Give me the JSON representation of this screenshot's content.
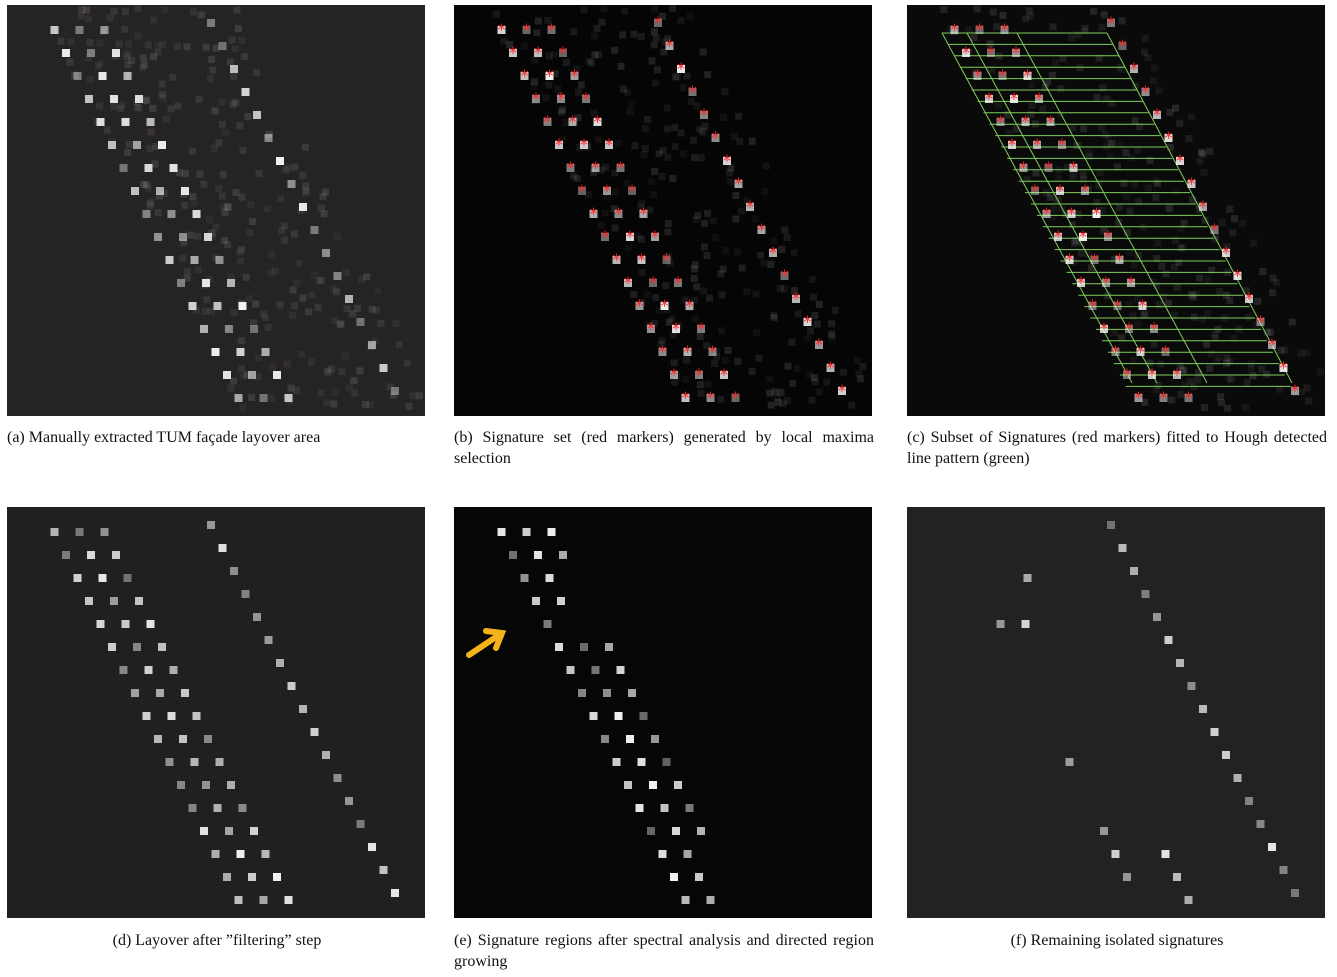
{
  "panels": [
    {
      "caption": "(a) Manually extracted TUM façade layover area"
    },
    {
      "caption": "(b) Signature set (red markers) generated by local maxima selection"
    },
    {
      "caption": "(c) Subset of Signatures (red markers) fitted to Hough detected line pattern (green)"
    },
    {
      "caption": "(d) Layover after ”filtering” step"
    },
    {
      "caption": "(e) Signature regions after spectral analysis and directed region growing"
    },
    {
      "caption": "(f) Remaining isolated signatures"
    }
  ]
}
